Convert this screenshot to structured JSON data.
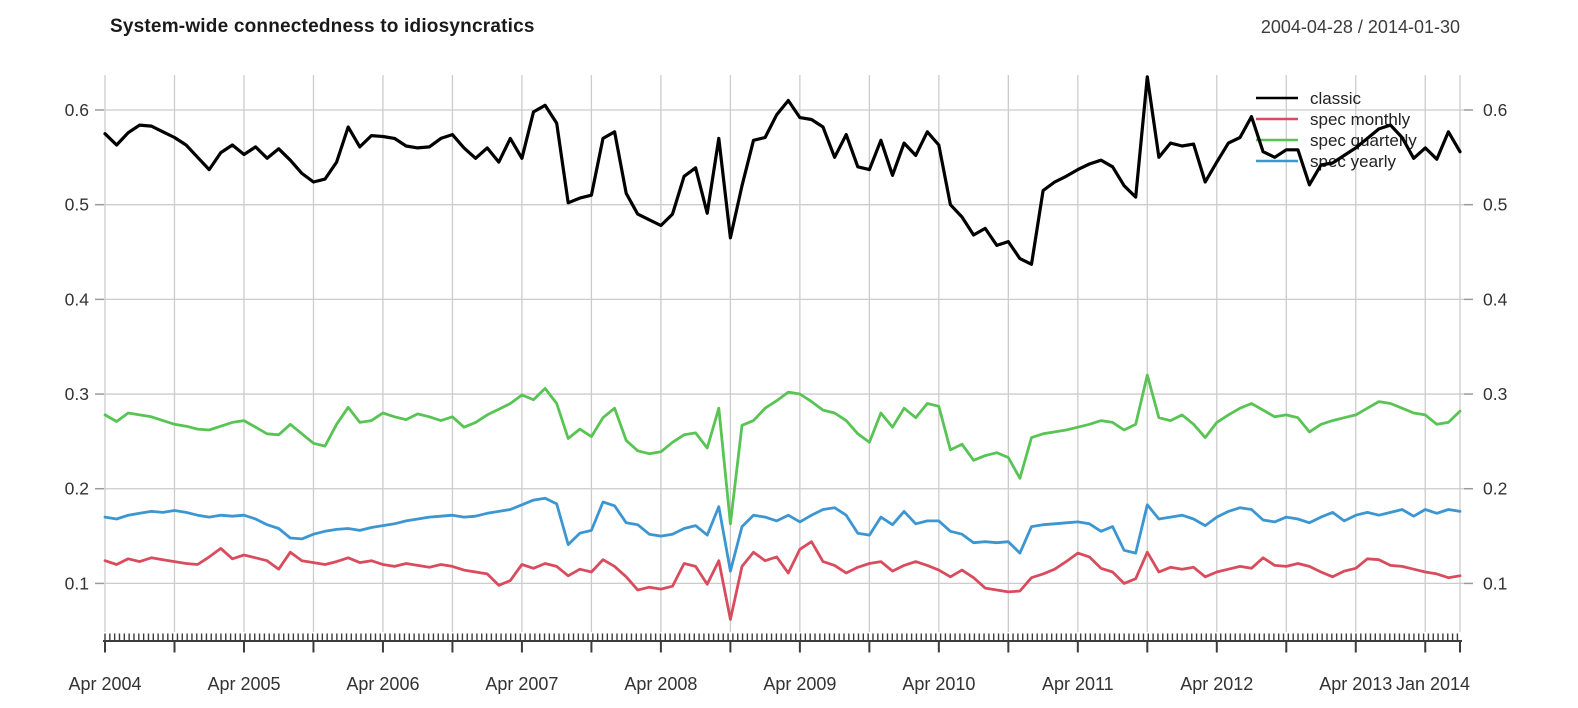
{
  "header": {
    "title": "System-wide connectedness to idiosyncratics",
    "date_range": "2004-04-28 / 2014-01-30"
  },
  "legend": {
    "position": "top-right",
    "items": [
      {
        "label": "classic",
        "color": "#000000"
      },
      {
        "label": "spec monthly",
        "color": "#D94C5E"
      },
      {
        "label": "spec quarterly",
        "color": "#58C454"
      },
      {
        "label": "spec yearly",
        "color": "#3B96D2"
      }
    ]
  },
  "axes": {
    "y_tick_labels": [
      "0.6",
      "0.5",
      "0.4",
      "0.3",
      "0.2",
      "0.1"
    ],
    "y_labels_on_both_sides": true,
    "x_tick_labels": [
      "Apr 2004",
      "Apr 2005",
      "Apr 2006",
      "Apr 2007",
      "Apr 2008",
      "Apr 2009",
      "Apr 2010",
      "Apr 2011",
      "Apr 2012",
      "Apr 2013",
      "Jan 2014"
    ]
  },
  "colors": {
    "grid": "#CCCCCC",
    "axis": "#3C3C3C",
    "tick_text": "#333333",
    "background": "#FFFFFF"
  },
  "chart_data": {
    "type": "line",
    "title": "System-wide connectedness to idiosyncratics",
    "subtitle_date_range": "2004-04-28 / 2014-01-30",
    "x_start": "2004-04",
    "x_end": "2014-01",
    "x_sampling": "monthly (values estimated from weekly plot)",
    "x_tick_labels": [
      "Apr 2004",
      "Apr 2005",
      "Apr 2006",
      "Apr 2007",
      "Apr 2008",
      "Apr 2009",
      "Apr 2010",
      "Apr 2011",
      "Apr 2012",
      "Apr 2013",
      "Jan 2014"
    ],
    "y_ticks": [
      0.1,
      0.2,
      0.3,
      0.4,
      0.5,
      0.6
    ],
    "ylim": [
      0.05,
      0.65
    ],
    "grid": true,
    "grid_x_interval_months": 6,
    "legend_position": "top-right",
    "series": [
      {
        "name": "classic",
        "color": "#000000",
        "width": 3.2,
        "values": [
          0.575,
          0.563,
          0.576,
          0.584,
          0.583,
          0.577,
          0.571,
          0.563,
          0.55,
          0.537,
          0.555,
          0.563,
          0.553,
          0.561,
          0.549,
          0.559,
          0.547,
          0.533,
          0.524,
          0.527,
          0.545,
          0.582,
          0.561,
          0.573,
          0.572,
          0.57,
          0.562,
          0.56,
          0.561,
          0.57,
          0.574,
          0.56,
          0.549,
          0.56,
          0.545,
          0.57,
          0.549,
          0.598,
          0.605,
          0.586,
          0.502,
          0.507,
          0.51,
          0.57,
          0.577,
          0.512,
          0.49,
          0.484,
          0.478,
          0.49,
          0.53,
          0.539,
          0.491,
          0.57,
          0.465,
          0.52,
          0.568,
          0.571,
          0.595,
          0.61,
          0.592,
          0.59,
          0.582,
          0.55,
          0.574,
          0.54,
          0.537,
          0.568,
          0.531,
          0.565,
          0.552,
          0.577,
          0.563,
          0.5,
          0.487,
          0.468,
          0.475,
          0.457,
          0.461,
          0.443,
          0.437,
          0.515,
          0.524,
          0.53,
          0.537,
          0.543,
          0.547,
          0.54,
          0.52,
          0.508,
          0.635,
          0.55,
          0.565,
          0.562,
          0.564,
          0.524,
          0.545,
          0.565,
          0.571,
          0.593,
          0.556,
          0.55,
          0.558,
          0.558,
          0.521,
          0.542,
          0.544,
          0.552,
          0.56,
          0.57,
          0.58,
          0.584,
          0.571,
          0.549,
          0.56,
          0.548,
          0.577,
          0.556
        ]
      },
      {
        "name": "spec monthly",
        "color": "#D94C5E",
        "width": 2.8,
        "values": [
          0.124,
          0.12,
          0.126,
          0.123,
          0.127,
          0.125,
          0.123,
          0.121,
          0.12,
          0.128,
          0.137,
          0.126,
          0.13,
          0.127,
          0.124,
          0.115,
          0.133,
          0.124,
          0.122,
          0.12,
          0.123,
          0.127,
          0.122,
          0.124,
          0.12,
          0.118,
          0.121,
          0.119,
          0.117,
          0.12,
          0.118,
          0.114,
          0.112,
          0.11,
          0.098,
          0.103,
          0.12,
          0.116,
          0.121,
          0.118,
          0.108,
          0.115,
          0.112,
          0.125,
          0.118,
          0.107,
          0.093,
          0.096,
          0.094,
          0.097,
          0.121,
          0.118,
          0.099,
          0.124,
          0.062,
          0.118,
          0.133,
          0.124,
          0.128,
          0.111,
          0.136,
          0.144,
          0.123,
          0.119,
          0.111,
          0.117,
          0.121,
          0.123,
          0.113,
          0.119,
          0.123,
          0.119,
          0.114,
          0.107,
          0.114,
          0.106,
          0.095,
          0.093,
          0.091,
          0.092,
          0.106,
          0.11,
          0.115,
          0.123,
          0.132,
          0.128,
          0.116,
          0.112,
          0.1,
          0.105,
          0.133,
          0.112,
          0.117,
          0.115,
          0.117,
          0.107,
          0.112,
          0.115,
          0.118,
          0.116,
          0.127,
          0.119,
          0.118,
          0.121,
          0.118,
          0.112,
          0.107,
          0.113,
          0.116,
          0.126,
          0.125,
          0.119,
          0.118,
          0.115,
          0.112,
          0.11,
          0.106,
          0.108
        ]
      },
      {
        "name": "spec quarterly",
        "color": "#58C454",
        "width": 2.8,
        "values": [
          0.278,
          0.271,
          0.28,
          0.278,
          0.276,
          0.272,
          0.268,
          0.266,
          0.263,
          0.262,
          0.266,
          0.27,
          0.272,
          0.265,
          0.258,
          0.257,
          0.268,
          0.258,
          0.248,
          0.245,
          0.268,
          0.286,
          0.27,
          0.272,
          0.28,
          0.276,
          0.273,
          0.279,
          0.276,
          0.272,
          0.276,
          0.265,
          0.27,
          0.278,
          0.284,
          0.29,
          0.299,
          0.294,
          0.306,
          0.29,
          0.253,
          0.263,
          0.255,
          0.275,
          0.285,
          0.251,
          0.24,
          0.237,
          0.239,
          0.249,
          0.257,
          0.259,
          0.243,
          0.285,
          0.163,
          0.267,
          0.272,
          0.285,
          0.293,
          0.302,
          0.3,
          0.292,
          0.283,
          0.28,
          0.272,
          0.258,
          0.249,
          0.28,
          0.265,
          0.285,
          0.275,
          0.29,
          0.287,
          0.241,
          0.247,
          0.23,
          0.235,
          0.238,
          0.233,
          0.211,
          0.254,
          0.258,
          0.26,
          0.262,
          0.265,
          0.268,
          0.272,
          0.27,
          0.262,
          0.268,
          0.32,
          0.275,
          0.272,
          0.278,
          0.268,
          0.254,
          0.27,
          0.278,
          0.285,
          0.29,
          0.283,
          0.276,
          0.278,
          0.275,
          0.26,
          0.268,
          0.272,
          0.275,
          0.278,
          0.285,
          0.292,
          0.29,
          0.285,
          0.28,
          0.278,
          0.268,
          0.27,
          0.282
        ]
      },
      {
        "name": "spec yearly",
        "color": "#3B96D2",
        "width": 2.8,
        "values": [
          0.17,
          0.168,
          0.172,
          0.174,
          0.176,
          0.175,
          0.177,
          0.175,
          0.172,
          0.17,
          0.172,
          0.171,
          0.172,
          0.168,
          0.162,
          0.158,
          0.148,
          0.147,
          0.152,
          0.155,
          0.157,
          0.158,
          0.156,
          0.159,
          0.161,
          0.163,
          0.166,
          0.168,
          0.17,
          0.171,
          0.172,
          0.17,
          0.171,
          0.174,
          0.176,
          0.178,
          0.183,
          0.188,
          0.19,
          0.184,
          0.141,
          0.153,
          0.156,
          0.186,
          0.182,
          0.164,
          0.162,
          0.152,
          0.15,
          0.152,
          0.158,
          0.161,
          0.151,
          0.181,
          0.113,
          0.16,
          0.172,
          0.17,
          0.166,
          0.172,
          0.165,
          0.172,
          0.178,
          0.18,
          0.172,
          0.153,
          0.151,
          0.17,
          0.162,
          0.176,
          0.163,
          0.166,
          0.166,
          0.155,
          0.152,
          0.143,
          0.144,
          0.143,
          0.144,
          0.132,
          0.16,
          0.162,
          0.163,
          0.164,
          0.165,
          0.163,
          0.155,
          0.16,
          0.135,
          0.132,
          0.183,
          0.168,
          0.17,
          0.172,
          0.168,
          0.161,
          0.17,
          0.176,
          0.18,
          0.178,
          0.167,
          0.165,
          0.17,
          0.168,
          0.164,
          0.17,
          0.175,
          0.166,
          0.172,
          0.175,
          0.172,
          0.175,
          0.178,
          0.171,
          0.178,
          0.174,
          0.178,
          0.176
        ]
      }
    ]
  }
}
